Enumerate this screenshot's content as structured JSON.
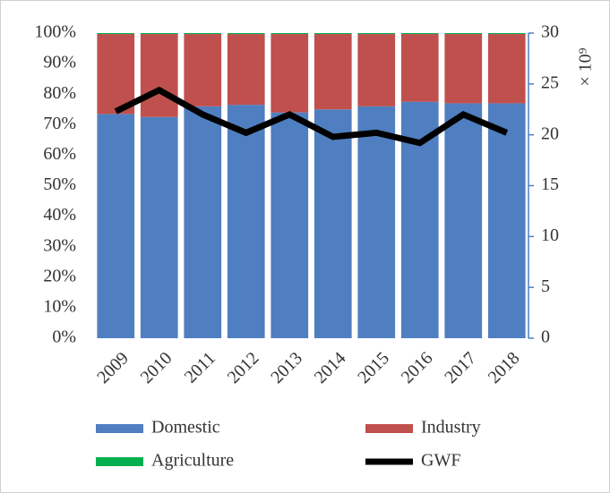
{
  "chart_data": {
    "type": "bar",
    "categories": [
      "2009",
      "2010",
      "2011",
      "2012",
      "2013",
      "2014",
      "2015",
      "2016",
      "2017",
      "2018"
    ],
    "series": [
      {
        "name": "Domestic",
        "color": "#4f7fc0",
        "values": [
          73.5,
          72.5,
          76,
          76.5,
          74,
          75,
          76,
          77.5,
          77,
          77
        ]
      },
      {
        "name": "Industry",
        "color": "#c0504d",
        "values": [
          26.2,
          27.2,
          23.7,
          23.2,
          25.7,
          24.7,
          23.7,
          22.2,
          22.7,
          22.7
        ]
      },
      {
        "name": "Agriculture",
        "color": "#00b050",
        "values": [
          0.3,
          0.3,
          0.3,
          0.3,
          0.3,
          0.3,
          0.3,
          0.3,
          0.3,
          0.3
        ]
      },
      {
        "name": "GWF",
        "color": "#000000",
        "type": "line",
        "axis": "y2",
        "values": [
          22.3,
          24.4,
          22.0,
          20.2,
          22.0,
          19.8,
          20.2,
          19.2,
          22.0,
          20.2
        ]
      }
    ],
    "stacked": true,
    "ylim": [
      0,
      100
    ],
    "yticks": [
      {
        "value": 0,
        "label": "0%"
      },
      {
        "value": 10,
        "label": "10%"
      },
      {
        "value": 20,
        "label": "20%"
      },
      {
        "value": 30,
        "label": "30%"
      },
      {
        "value": 40,
        "label": "40%"
      },
      {
        "value": 50,
        "label": "50%"
      },
      {
        "value": 60,
        "label": "60%"
      },
      {
        "value": 70,
        "label": "70%"
      },
      {
        "value": 80,
        "label": "80%"
      },
      {
        "value": 90,
        "label": "90%"
      },
      {
        "value": 100,
        "label": "100%"
      }
    ],
    "y2lim": [
      0,
      30
    ],
    "y2ticks": [
      0,
      5,
      10,
      15,
      20,
      25,
      30
    ],
    "y2label": "× 10⁹",
    "grid": false
  }
}
